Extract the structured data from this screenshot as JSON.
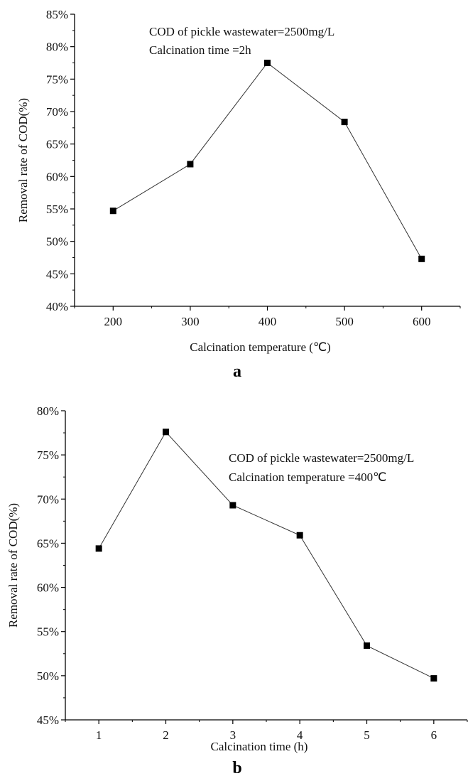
{
  "chart_data": [
    {
      "type": "line",
      "panel_label": "a",
      "xlabel": "Calcination temperature (℃)",
      "ylabel": "Removal rate of COD(%)",
      "x": [
        200,
        300,
        400,
        500,
        600
      ],
      "series": [
        {
          "values": [
            54.7,
            61.9,
            77.5,
            68.4,
            47.3
          ]
        }
      ],
      "xticks": [
        "200",
        "300",
        "400",
        "500",
        "600"
      ],
      "yticks": [
        "40%",
        "45%",
        "50%",
        "55%",
        "60%",
        "65%",
        "70%",
        "75%",
        "80%",
        "85%"
      ],
      "xlim": [
        150,
        650
      ],
      "ylim": [
        40,
        85
      ],
      "annotations": [
        "COD of pickle wastewater=2500mg/L",
        "Calcination time =2h"
      ],
      "grid": false,
      "marker": "square"
    },
    {
      "type": "line",
      "panel_label": "b",
      "xlabel": "Calcination time (h)",
      "ylabel": "Removal rate of COD(%)",
      "x": [
        1,
        2,
        3,
        4,
        5,
        6
      ],
      "series": [
        {
          "values": [
            64.4,
            77.6,
            69.3,
            65.9,
            53.4,
            49.7
          ]
        }
      ],
      "xticks": [
        "1",
        "2",
        "3",
        "4",
        "5",
        "6"
      ],
      "yticks": [
        "45%",
        "50%",
        "55%",
        "60%",
        "65%",
        "70%",
        "75%",
        "80%"
      ],
      "xlim": [
        0.5,
        6.5
      ],
      "ylim": [
        45,
        80
      ],
      "annotations": [
        "COD of pickle wastewater=2500mg/L",
        "Calcination temperature =400℃"
      ],
      "grid": false,
      "marker": "square"
    }
  ]
}
